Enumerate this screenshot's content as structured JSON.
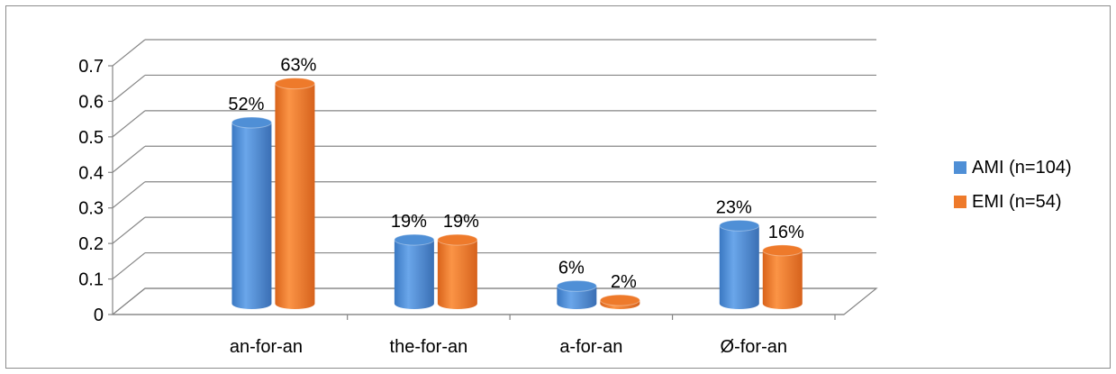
{
  "chart_data": {
    "type": "bar",
    "style": "3d-cylinder",
    "title": "",
    "xlabel": "",
    "ylabel": "",
    "ylim": [
      0,
      0.7
    ],
    "yticks": [
      "0",
      "0.1",
      "0.2",
      "0.3",
      "0.4",
      "0.5",
      "0.6",
      "0.7"
    ],
    "grid": true,
    "legend_position": "right",
    "categories": [
      "an-for-an",
      "the-for-an",
      "a-for-an",
      "Ø-for-an"
    ],
    "series": [
      {
        "name": "AMI (n=104)",
        "color": "#4f8fd6",
        "values": [
          0.52,
          0.19,
          0.06,
          0.23
        ],
        "labels": [
          "52%",
          "19%",
          "6%",
          "23%"
        ]
      },
      {
        "name": "EMI (n=54)",
        "color": "#ee7a2b",
        "values": [
          0.63,
          0.19,
          0.02,
          0.16
        ],
        "labels": [
          "63%",
          "19%",
          "2%",
          "16%"
        ]
      }
    ]
  }
}
